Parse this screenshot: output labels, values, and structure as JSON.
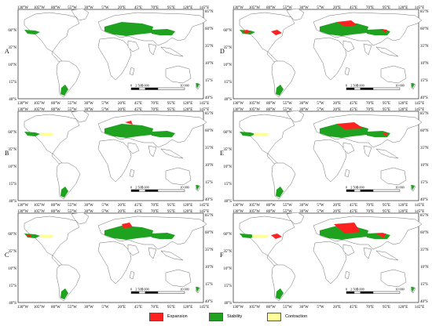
{
  "panels": [
    {
      "letter": "A"
    },
    {
      "letter": "D"
    },
    {
      "letter": "B"
    },
    {
      "letter": "E"
    },
    {
      "letter": "C"
    },
    {
      "letter": "F"
    }
  ],
  "lon_labels": [
    "130°W",
    "105°W",
    "80°W",
    "55°W",
    "30°W",
    "5°W",
    "20°E",
    "45°E",
    "70°E",
    "95°E",
    "120°E",
    "145°E"
  ],
  "lat_left": [
    "60°N",
    "35°N",
    "10°N",
    "15°S",
    "40°S"
  ],
  "lat_right": [
    "85°N",
    "60°N",
    "35°N",
    "10°N",
    "15°S",
    "40°S"
  ],
  "scale": {
    "ticks": [
      "0",
      "2 500",
      "5 000",
      "10 000"
    ]
  },
  "legend": {
    "items": [
      {
        "label": "Expansion",
        "color": "#ff2020"
      },
      {
        "label": "Stability",
        "color": "#1fa21f"
      },
      {
        "label": "Contraction",
        "color": "#ffff99"
      }
    ]
  },
  "colors": {
    "land_outline": "#6f6f6f",
    "land_fill": "#ffffff",
    "stability": "#1fa21f",
    "expansion": "#ff2020",
    "contraction": "#ffff99"
  }
}
